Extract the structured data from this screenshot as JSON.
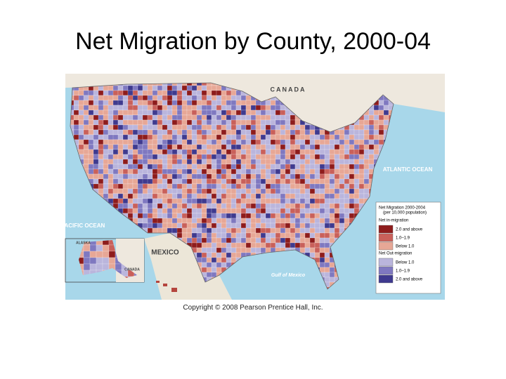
{
  "title": "Net Migration by County, 2000-04",
  "map": {
    "labels": {
      "canada": "CANADA",
      "atlantic": "ATLANTIC OCEAN",
      "pacific": "PACIFIC OCEAN",
      "mexico": "MEXICO",
      "gulf": "Gulf of Mexico",
      "alaska": "ALASKA",
      "canada_inset": "CANADA"
    },
    "legend": {
      "title": "Net Migration 2000-2004",
      "subtitle": "(per 10,000 population)",
      "groups": [
        {
          "name": "Net in-migration",
          "items": [
            {
              "label": "2.0 and above",
              "color": "#8e1c1c"
            },
            {
              "label": "1.0–1.9",
              "color": "#c9605a"
            },
            {
              "label": "Below 1.0",
              "color": "#e7a796"
            }
          ]
        },
        {
          "name": "Net Out-migration",
          "items": [
            {
              "label": "Below 1.0",
              "color": "#bab5dc"
            },
            {
              "label": "1.0–1.9",
              "color": "#7f78c0"
            },
            {
              "label": "2.0 and above",
              "color": "#3f3a8f"
            }
          ]
        }
      ]
    }
  },
  "copyright": "Copyright © 2008 Pearson Prentice Hall, Inc."
}
